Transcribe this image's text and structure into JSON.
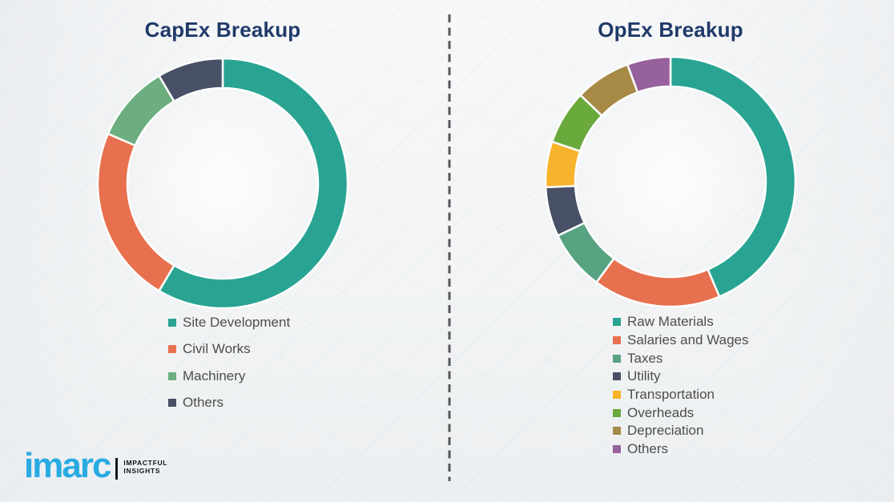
{
  "chart_data": [
    {
      "type": "pie",
      "subtype": "donut",
      "title": "CapEx Breakup",
      "labels": [
        "Site Development",
        "Civil Works",
        "Machinery",
        "Others"
      ],
      "values": [
        58.5,
        23.0,
        10.0,
        8.5
      ],
      "colors": [
        "#29A492",
        "#E7704E",
        "#6CAE7F",
        "#485066"
      ],
      "values_are_estimates": true,
      "start_angle_deg": 0,
      "direction": "clockwise",
      "legend_position": "below-chart"
    },
    {
      "type": "pie",
      "subtype": "donut",
      "title": "OpEx Breakup",
      "labels": [
        "Raw Materials",
        "Salaries and Wages",
        "Taxes",
        "Utility",
        "Transportation",
        "Overheads",
        "Depreciation",
        "Others"
      ],
      "values": [
        43.6,
        16.5,
        7.8,
        6.4,
        5.9,
        7.0,
        7.2,
        5.6
      ],
      "colors": [
        "#29A492",
        "#E7704E",
        "#57A381",
        "#485066",
        "#F7B32B",
        "#6AA93C",
        "#A68A45",
        "#96619C"
      ],
      "values_are_estimates": true,
      "start_angle_deg": 0,
      "direction": "clockwise",
      "legend_position": "below-chart"
    }
  ],
  "logo": {
    "brand": "imarc",
    "tagline_line1": "IMPACTFUL",
    "tagline_line2": "INSIGHTS"
  },
  "style": {
    "title_color": "#203A69",
    "legend_text_color": "#4D4D4D",
    "divider_color": "#55575A",
    "brand_blue": "#29ABE2",
    "tagline_black": "#121417",
    "segment_gap_color": "#FFFFFF"
  }
}
